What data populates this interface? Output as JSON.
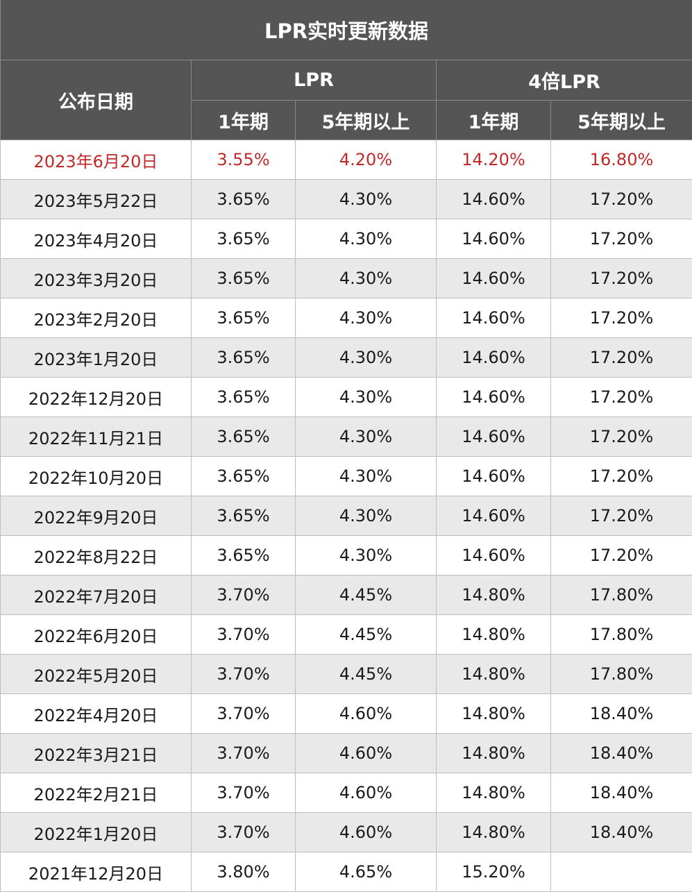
{
  "table": {
    "title": "LPR实时更新数据",
    "header": {
      "date_label": "公布日期",
      "group_lpr": "LPR",
      "group_4x": "4倍LPR",
      "sub_1y": "1年期",
      "sub_5y": "5年期以上"
    },
    "rows": [
      {
        "date": "2023年6月20日",
        "lpr1": "3.55%",
        "lpr5": "4.20%",
        "x4_1": "14.20%",
        "x4_5": "16.80%"
      },
      {
        "date": "2023年5月22日",
        "lpr1": "3.65%",
        "lpr5": "4.30%",
        "x4_1": "14.60%",
        "x4_5": "17.20%"
      },
      {
        "date": "2023年4月20日",
        "lpr1": "3.65%",
        "lpr5": "4.30%",
        "x4_1": "14.60%",
        "x4_5": "17.20%"
      },
      {
        "date": "2023年3月20日",
        "lpr1": "3.65%",
        "lpr5": "4.30%",
        "x4_1": "14.60%",
        "x4_5": "17.20%"
      },
      {
        "date": "2023年2月20日",
        "lpr1": "3.65%",
        "lpr5": "4.30%",
        "x4_1": "14.60%",
        "x4_5": "17.20%"
      },
      {
        "date": "2023年1月20日",
        "lpr1": "3.65%",
        "lpr5": "4.30%",
        "x4_1": "14.60%",
        "x4_5": "17.20%"
      },
      {
        "date": "2022年12月20日",
        "lpr1": "3.65%",
        "lpr5": "4.30%",
        "x4_1": "14.60%",
        "x4_5": "17.20%"
      },
      {
        "date": "2022年11月21日",
        "lpr1": "3.65%",
        "lpr5": "4.30%",
        "x4_1": "14.60%",
        "x4_5": "17.20%"
      },
      {
        "date": "2022年10月20日",
        "lpr1": "3.65%",
        "lpr5": "4.30%",
        "x4_1": "14.60%",
        "x4_5": "17.20%"
      },
      {
        "date": "2022年9月20日",
        "lpr1": "3.65%",
        "lpr5": "4.30%",
        "x4_1": "14.60%",
        "x4_5": "17.20%"
      },
      {
        "date": "2022年8月22日",
        "lpr1": "3.65%",
        "lpr5": "4.30%",
        "x4_1": "14.60%",
        "x4_5": "17.20%"
      },
      {
        "date": "2022年7月20日",
        "lpr1": "3.70%",
        "lpr5": "4.45%",
        "x4_1": "14.80%",
        "x4_5": "17.80%"
      },
      {
        "date": "2022年6月20日",
        "lpr1": "3.70%",
        "lpr5": "4.45%",
        "x4_1": "14.80%",
        "x4_5": "17.80%"
      },
      {
        "date": "2022年5月20日",
        "lpr1": "3.70%",
        "lpr5": "4.45%",
        "x4_1": "14.80%",
        "x4_5": "17.80%"
      },
      {
        "date": "2022年4月20日",
        "lpr1": "3.70%",
        "lpr5": "4.60%",
        "x4_1": "14.80%",
        "x4_5": "18.40%"
      },
      {
        "date": "2022年3月21日",
        "lpr1": "3.70%",
        "lpr5": "4.60%",
        "x4_1": "14.80%",
        "x4_5": "18.40%"
      },
      {
        "date": "2022年2月21日",
        "lpr1": "3.70%",
        "lpr5": "4.60%",
        "x4_1": "14.80%",
        "x4_5": "18.40%"
      },
      {
        "date": "2022年1月20日",
        "lpr1": "3.70%",
        "lpr5": "4.60%",
        "x4_1": "14.80%",
        "x4_5": "18.40%"
      },
      {
        "date": "2021年12月20日",
        "lpr1": "3.80%",
        "lpr5": "4.65%",
        "x4_1": "15.20%",
        "x4_5": ""
      }
    ],
    "colors": {
      "header_bg": "#555555",
      "band_bg": "#e9e9e9",
      "highlight_text": "#c0282a"
    }
  }
}
